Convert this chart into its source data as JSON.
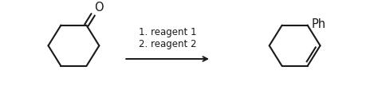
{
  "bg_color": "#ffffff",
  "line_color": "#1a1a1a",
  "line_width": 1.5,
  "arrow_text_line1": "1. reagent 1",
  "arrow_text_line2": "2. reagent 2",
  "ph_label": "Ph",
  "o_label": "O",
  "figsize": [
    4.74,
    1.08
  ],
  "dpi": 100,
  "text_fontsize": 8.5
}
